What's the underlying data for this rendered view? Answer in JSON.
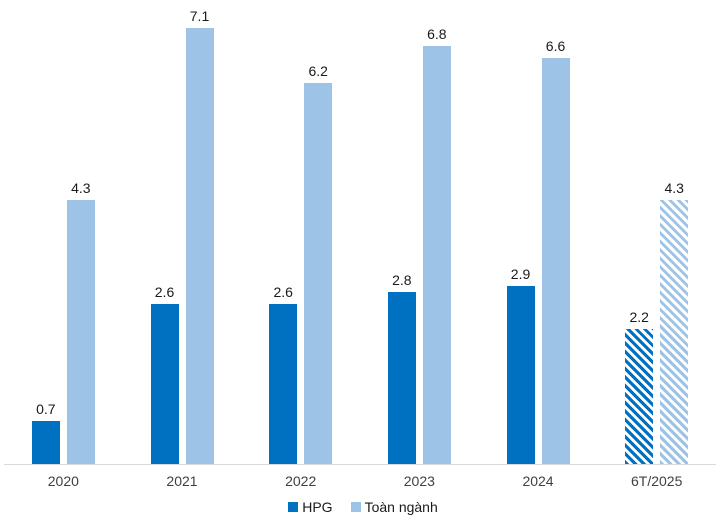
{
  "chart_data": {
    "type": "bar",
    "title": "",
    "xlabel": "",
    "ylabel": "",
    "categories": [
      "2020",
      "2021",
      "2022",
      "2023",
      "2024",
      "6T/2025"
    ],
    "series": [
      {
        "name": "HPG",
        "color": "#0070C0",
        "values": [
          0.7,
          2.6,
          2.6,
          2.8,
          2.9,
          2.2
        ]
      },
      {
        "name": "Toàn ngành",
        "color": "#9DC3E6",
        "values": [
          4.3,
          7.1,
          6.2,
          6.8,
          6.6,
          4.3
        ]
      }
    ],
    "value_labels": {
      "HPG": [
        "0.7",
        "2.6",
        "2.6",
        "2.8",
        "2.9",
        "2.2"
      ],
      "Toàn ngành": [
        "4.3",
        "7.1",
        "6.2",
        "6.8",
        "6.6",
        "4.3"
      ]
    },
    "hatched_categories": [
      "6T/2025"
    ],
    "ylim": [
      0,
      7.55
    ],
    "grid": false,
    "y_axis_shown": false,
    "legend_position": "bottom",
    "axis_line_color": "#D9D9D9",
    "value_label_color": "#1a1a1a",
    "category_label_color": "#404040",
    "background_color": "#ffffff"
  }
}
